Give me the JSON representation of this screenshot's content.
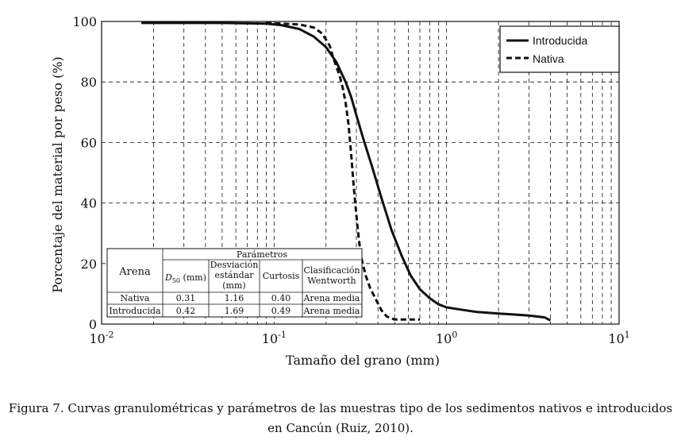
{
  "chart_data": {
    "type": "line",
    "x_scale": "log",
    "xlim": [
      0.01,
      10
    ],
    "ylim": [
      0,
      100
    ],
    "xlabel": "Tamaño del grano (mm)",
    "ylabel": "Porcentaje del material por peso (%)",
    "x_ticks": [
      {
        "value": 0.01,
        "base": "10",
        "exp": "-2"
      },
      {
        "value": 0.1,
        "base": "10",
        "exp": "-1"
      },
      {
        "value": 1,
        "base": "10",
        "exp": "0"
      },
      {
        "value": 10,
        "base": "10",
        "exp": "1"
      }
    ],
    "y_ticks": [
      0,
      20,
      40,
      60,
      80,
      100
    ],
    "grid": true,
    "legend_position": "top-right",
    "series": [
      {
        "name": "Introducida",
        "style": "solid",
        "x": [
          0.017,
          0.05,
          0.09,
          0.11,
          0.14,
          0.17,
          0.2,
          0.23,
          0.26,
          0.28,
          0.3,
          0.33,
          0.37,
          0.42,
          0.48,
          0.55,
          0.62,
          0.7,
          0.8,
          0.9,
          1.0,
          1.2,
          1.5,
          2.0,
          3.0,
          3.7,
          4.0
        ],
        "y": [
          99.5,
          99.5,
          99.3,
          98.8,
          97.5,
          95.0,
          91.5,
          86.5,
          80.0,
          75.0,
          69.0,
          61.0,
          52.0,
          41.5,
          31.0,
          22.5,
          16.0,
          11.5,
          8.5,
          6.5,
          5.5,
          4.8,
          4.0,
          3.5,
          2.8,
          2.2,
          1.2
        ]
      },
      {
        "name": "Nativa",
        "style": "dashed",
        "x": [
          0.09,
          0.11,
          0.14,
          0.17,
          0.19,
          0.21,
          0.22,
          0.23,
          0.24,
          0.25,
          0.26,
          0.27,
          0.28,
          0.29,
          0.3,
          0.31,
          0.32,
          0.34,
          0.36,
          0.39,
          0.42,
          0.45,
          0.5,
          0.7
        ],
        "y": [
          99.5,
          99.3,
          99.0,
          98.0,
          96.0,
          92.0,
          88.0,
          85.0,
          82.0,
          78.0,
          73.0,
          66.0,
          56.0,
          45.0,
          36.0,
          28.0,
          22.0,
          16.0,
          12.0,
          8.0,
          4.5,
          2.5,
          1.5,
          1.5
        ]
      }
    ],
    "table": {
      "header_group": "Parámetros",
      "row_header": "Arena",
      "columns": [
        {
          "lines": [
            "D50 (mm)"
          ],
          "main": "D",
          "sub": "50",
          "rest": " (mm)"
        },
        {
          "lines": [
            "Desviación",
            "estándar",
            "(mm)"
          ]
        },
        {
          "lines": [
            "Curtosis"
          ]
        },
        {
          "lines": [
            "Clasificación",
            "Wentworth"
          ]
        }
      ],
      "rows": [
        {
          "label": "Nativa",
          "values": [
            "0.31",
            "1.16",
            "0.40",
            "Arena media"
          ]
        },
        {
          "label": "Introducida",
          "values": [
            "0.42",
            "1.69",
            "0.49",
            "Arena media"
          ]
        }
      ]
    }
  },
  "caption": {
    "line1": "Figura 7. Curvas granulométricas y parámetros de las muestras tipo de los sedimentos nativos e introducidos",
    "line2": "en Cancún (Ruiz, 2010)."
  }
}
